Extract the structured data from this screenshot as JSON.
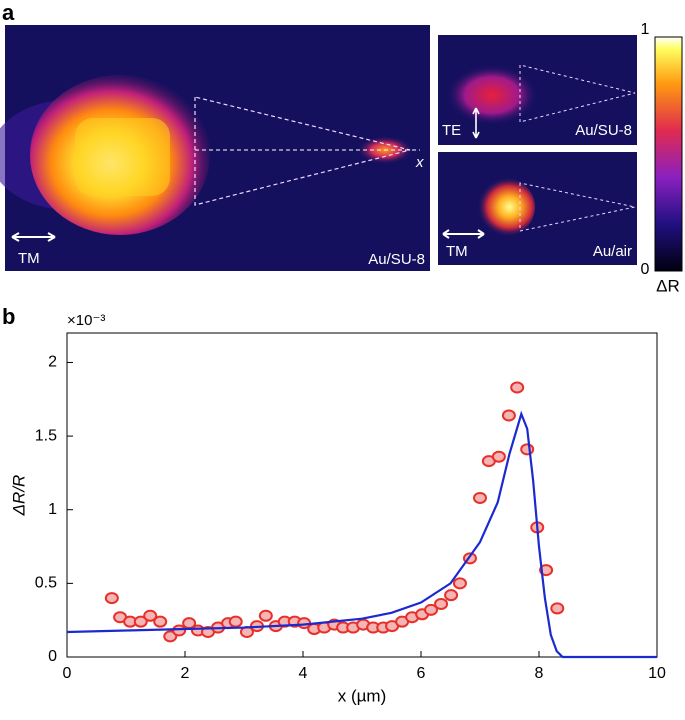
{
  "panel_labels": [
    "a",
    "b"
  ],
  "panel_a": {
    "main": {
      "polarization": "TM",
      "sample": "Au/SU-8",
      "axis": "x"
    },
    "top_right": {
      "polarization": "TE",
      "sample": "Au/SU-8"
    },
    "bottom_right": {
      "polarization": "TM",
      "sample": "Au/air"
    },
    "colorbar": {
      "max": "1",
      "min": "0",
      "label": "ΔR"
    }
  },
  "chart_data": {
    "type": "scatter",
    "y_multiplier": "×10⁻³",
    "xlabel": "x (µm)",
    "ylabel": "ΔR/R",
    "xlim": [
      0,
      10
    ],
    "ylim": [
      0,
      2.2
    ],
    "xticks": [
      0,
      2,
      4,
      6,
      8,
      10
    ],
    "yticks": [
      0,
      0.5,
      1,
      1.5,
      2
    ],
    "series": [
      {
        "mode": "markers",
        "color": "#f5b5b5",
        "edge_color": "#e8302a",
        "x": [
          0.76,
          0.9,
          1.07,
          1.25,
          1.41,
          1.58,
          1.75,
          1.9,
          2.07,
          2.22,
          2.39,
          2.56,
          2.73,
          2.86,
          3.05,
          3.22,
          3.37,
          3.54,
          3.69,
          3.86,
          4.02,
          4.19,
          4.36,
          4.53,
          4.68,
          4.85,
          5.02,
          5.19,
          5.36,
          5.51,
          5.68,
          5.85,
          6.02,
          6.17,
          6.34,
          6.51,
          6.66,
          6.83,
          7.0,
          7.15,
          7.32,
          7.49,
          7.63,
          7.8,
          7.97,
          8.12,
          8.31
        ],
        "values": [
          0.4,
          0.27,
          0.24,
          0.24,
          0.28,
          0.24,
          0.14,
          0.18,
          0.23,
          0.18,
          0.17,
          0.2,
          0.23,
          0.24,
          0.17,
          0.21,
          0.28,
          0.21,
          0.24,
          0.24,
          0.23,
          0.19,
          0.2,
          0.22,
          0.2,
          0.2,
          0.22,
          0.2,
          0.2,
          0.21,
          0.24,
          0.27,
          0.29,
          0.32,
          0.36,
          0.42,
          0.5,
          0.67,
          1.08,
          1.33,
          1.36,
          1.64,
          1.83,
          1.41,
          0.88,
          0.59,
          0.33
        ]
      },
      {
        "mode": "line",
        "color": "#1a2ad0",
        "x": [
          0,
          1,
          2,
          3,
          4,
          5,
          5.5,
          6,
          6.5,
          7,
          7.3,
          7.5,
          7.7,
          7.8,
          7.9,
          8.0,
          8.1,
          8.2,
          8.3,
          8.4,
          10
        ],
        "values": [
          0.17,
          0.18,
          0.19,
          0.2,
          0.22,
          0.26,
          0.3,
          0.37,
          0.5,
          0.78,
          1.05,
          1.38,
          1.65,
          1.55,
          1.2,
          0.75,
          0.4,
          0.15,
          0.04,
          0,
          0
        ]
      }
    ]
  }
}
